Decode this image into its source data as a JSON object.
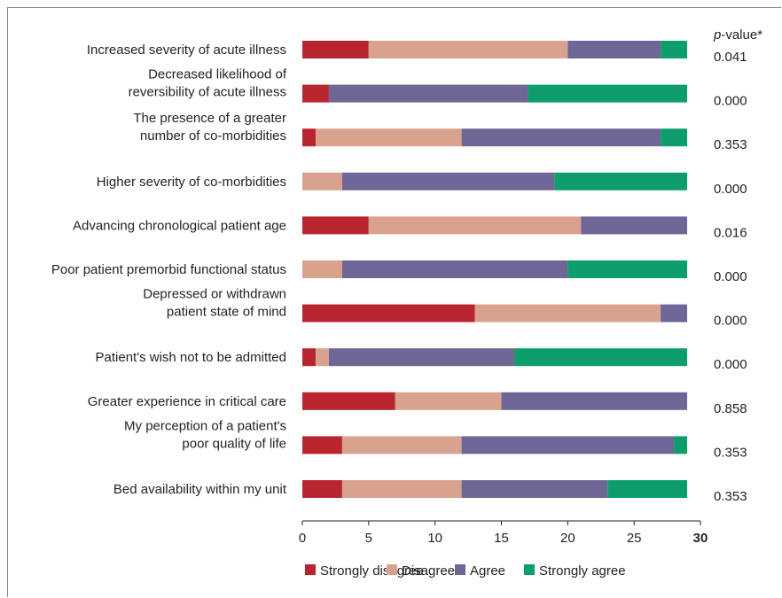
{
  "chart_data": {
    "type": "bar",
    "orientation": "horizontal",
    "stacked": true,
    "categories": [
      [
        "Increased severity of acute illness"
      ],
      [
        "Decreased likelihood of",
        "reversibility of acute illness"
      ],
      [
        "The presence of a greater",
        "number of co-morbidities"
      ],
      [
        "Higher severity of co-morbidities"
      ],
      [
        "Advancing chronological patient age"
      ],
      [
        "Poor patient premorbid functional status"
      ],
      [
        "Depressed or withdrawn",
        "patient state of mind"
      ],
      [
        "Patient's wish not to be admitted"
      ],
      [
        "Greater experience in critical care"
      ],
      [
        "My perception of a patient's",
        "poor quality of life"
      ],
      [
        "Bed availability within my unit"
      ]
    ],
    "series": [
      {
        "name": "Strongly disagree",
        "color": "#b8252f",
        "values": [
          5,
          2,
          1,
          0,
          5,
          0,
          13,
          1,
          7,
          3,
          3
        ]
      },
      {
        "name": "Disagree",
        "color": "#d9a28f",
        "values": [
          15,
          0,
          11,
          3,
          16,
          3,
          14,
          1,
          8,
          9,
          9
        ]
      },
      {
        "name": "Agree",
        "color": "#6e6795",
        "values": [
          7,
          15,
          15,
          16,
          8,
          17,
          2,
          14,
          14,
          16,
          11
        ]
      },
      {
        "name": "Strongly agree",
        "color": "#0d9e6b",
        "values": [
          2,
          12,
          2,
          10,
          0,
          9,
          0,
          13,
          0,
          1,
          6
        ]
      }
    ],
    "pvalue_header": {
      "italic": "p",
      "rest": "-value*"
    },
    "pvalues": [
      "0.041",
      "0.000",
      "0.353",
      "0.000",
      "0.016",
      "0.000",
      "0.000",
      "0.000",
      "0.858",
      "0.353",
      "0.353"
    ],
    "xaxis": {
      "min": 0,
      "max": 30,
      "ticks": [
        "0",
        "5",
        "10",
        "15",
        "20",
        "25",
        "30"
      ]
    },
    "legend_position": "bottom"
  }
}
